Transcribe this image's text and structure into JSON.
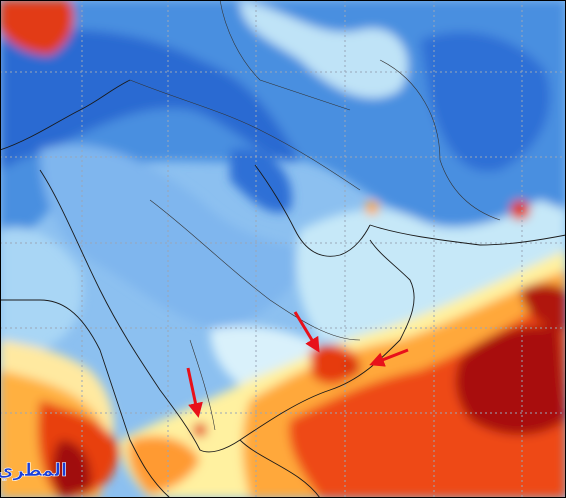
{
  "watermark": {
    "text": "المطري"
  }
}
